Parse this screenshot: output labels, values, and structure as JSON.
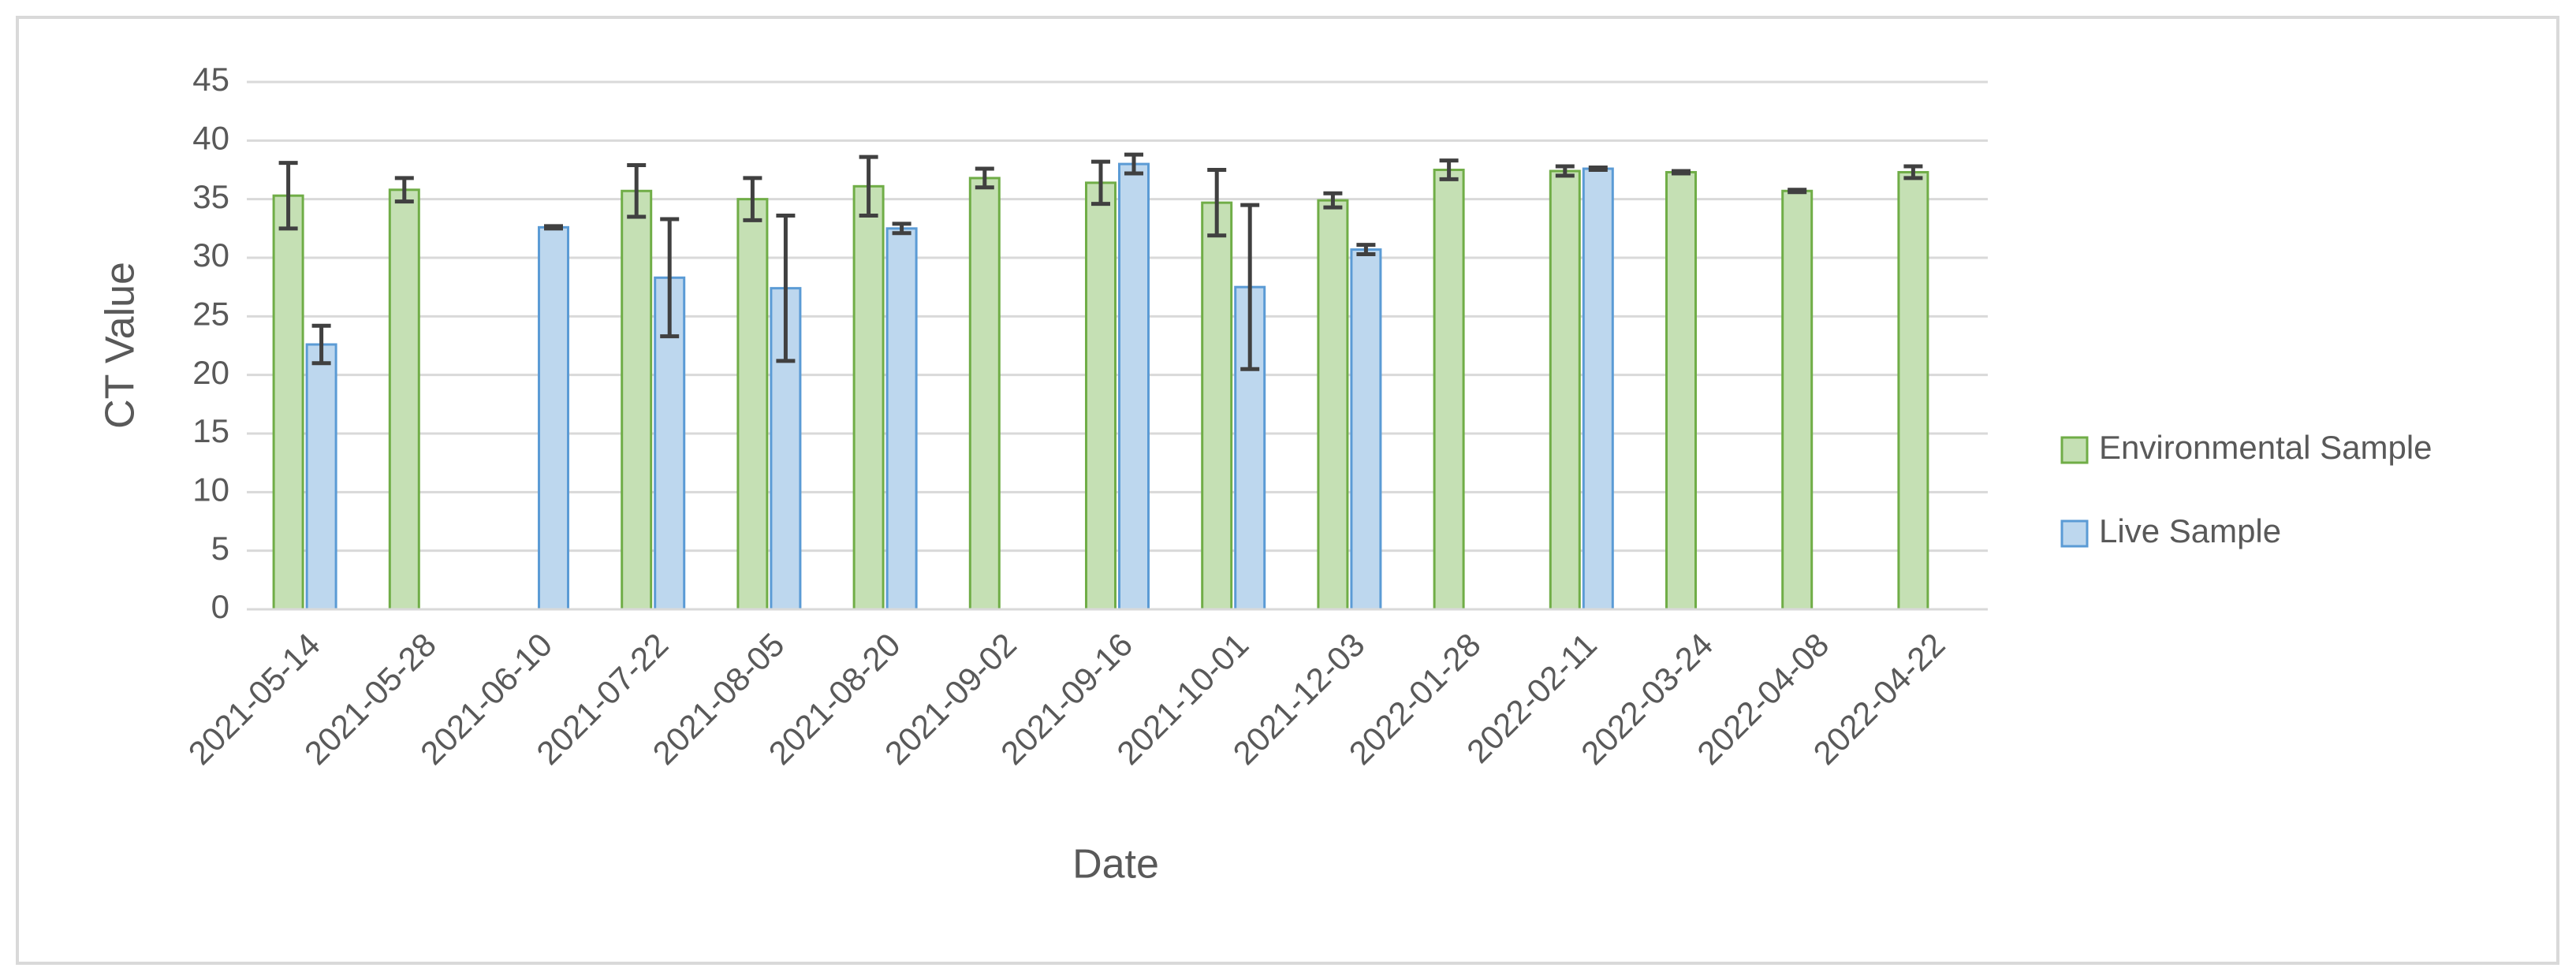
{
  "chart_data": {
    "type": "bar",
    "x_label": "Date",
    "y_label": "CT Value",
    "categories": [
      "2021-05-14",
      "2021-05-28",
      "2021-06-10",
      "2021-07-22",
      "2021-08-05",
      "2021-08-20",
      "2021-09-02",
      "2021-09-16",
      "2021-10-01",
      "2021-12-03",
      "2022-01-28",
      "2022-02-11",
      "2022-03-24",
      "2022-04-08",
      "2022-04-22"
    ],
    "series": [
      {
        "name": "Environmental Sample",
        "color": "#c5e0b4",
        "edge_color": "#70ad47",
        "values": [
          35.3,
          35.8,
          null,
          35.7,
          35.0,
          36.1,
          36.8,
          36.4,
          34.7,
          34.9,
          37.5,
          37.4,
          37.3,
          35.7,
          37.3
        ],
        "errors": [
          2.8,
          1.0,
          null,
          2.2,
          1.8,
          2.5,
          0.8,
          1.8,
          2.8,
          0.6,
          0.8,
          0.4,
          0.1,
          0.1,
          0.5
        ]
      },
      {
        "name": "Live Sample",
        "color": "#bdd7ee",
        "edge_color": "#5b9bd5",
        "values": [
          22.6,
          null,
          32.6,
          28.3,
          27.4,
          32.5,
          null,
          38.0,
          27.5,
          30.7,
          null,
          37.6,
          null,
          null,
          null
        ],
        "errors": [
          1.6,
          null,
          0.1,
          5.0,
          6.2,
          0.4,
          null,
          0.8,
          7.0,
          0.4,
          null,
          0.1,
          null,
          null,
          null
        ]
      }
    ],
    "error_color": "#404040",
    "ylim": [
      0,
      45
    ],
    "yticks": [
      0,
      5,
      10,
      15,
      20,
      25,
      30,
      35,
      40,
      45
    ],
    "grid": true,
    "legend": "right"
  }
}
